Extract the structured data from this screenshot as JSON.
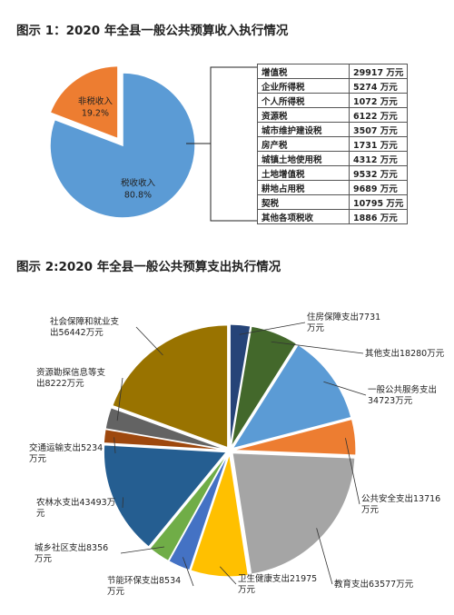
{
  "figure1": {
    "title": "图示 1：2020 年全县一般公共预算收入执行情况",
    "chart_data": {
      "type": "pie",
      "title": "图示 1：2020 年全县一般公共预算收入执行情况",
      "slices": [
        {
          "name": "税收收入",
          "percent_label": "80.8%",
          "value": 80.8,
          "color": "#5b9bd5"
        },
        {
          "name": "非税收入",
          "percent_label": "19.2%",
          "value": 19.2,
          "color": "#ed7d31"
        }
      ]
    },
    "table": [
      {
        "name": "增值税",
        "value": "29917",
        "unit": "万元"
      },
      {
        "name": "企业所得税",
        "value": "5274",
        "unit": "万元"
      },
      {
        "name": "个人所得税",
        "value": "1072",
        "unit": "万元"
      },
      {
        "name": "资源税",
        "value": "6122",
        "unit": "万元"
      },
      {
        "name": "城市维护建设税",
        "value": "3507",
        "unit": "万元"
      },
      {
        "name": "房产税",
        "value": "1731",
        "unit": "万元"
      },
      {
        "name": "城镇土地使用税",
        "value": "4312",
        "unit": "万元"
      },
      {
        "name": "土地增值税",
        "value": "9532",
        "unit": "万元"
      },
      {
        "name": "耕地占用税",
        "value": "9689",
        "unit": "万元"
      },
      {
        "name": "契税",
        "value": "10795",
        "unit": "万元"
      },
      {
        "name": "其他各项税收",
        "value": "1886",
        "unit": "万元"
      }
    ]
  },
  "figure2": {
    "title": "图示 2:2020 年全县一般公共预算支出执行情况",
    "chart_data": {
      "type": "pie",
      "title": "图示 2:2020 年全县一般公共预算支出执行情况",
      "slices": [
        {
          "label": "住房保障支出7731万元",
          "value": 7731,
          "color": "#264478"
        },
        {
          "label": "其他支出18280万元",
          "value": 18280,
          "color": "#43682b"
        },
        {
          "label": "一般公共服务支出34723万元",
          "value": 34723,
          "color": "#5b9bd5"
        },
        {
          "label": "公共安全支出13716万元",
          "value": 13716,
          "color": "#ed7d31"
        },
        {
          "label": "教育支出63577万元",
          "value": 63577,
          "color": "#a5a5a5"
        },
        {
          "label": "卫生健康支出21975万元",
          "value": 21975,
          "color": "#ffc000"
        },
        {
          "label": "节能环保支出8534万元",
          "value": 8534,
          "color": "#4472c4"
        },
        {
          "label": "城乡社区支出8356万元",
          "value": 8356,
          "color": "#70ad47"
        },
        {
          "label": "农林水支出43493万元",
          "value": 43493,
          "color": "#255e91"
        },
        {
          "label": "交通运输支出5234万元",
          "value": 5234,
          "color": "#9e480e"
        },
        {
          "label": "资源勘探信息等支出8222万元",
          "value": 8222,
          "color": "#636363"
        },
        {
          "label": "社会保障和就业支出56442万元",
          "value": 56442,
          "color": "#997300"
        }
      ]
    }
  }
}
